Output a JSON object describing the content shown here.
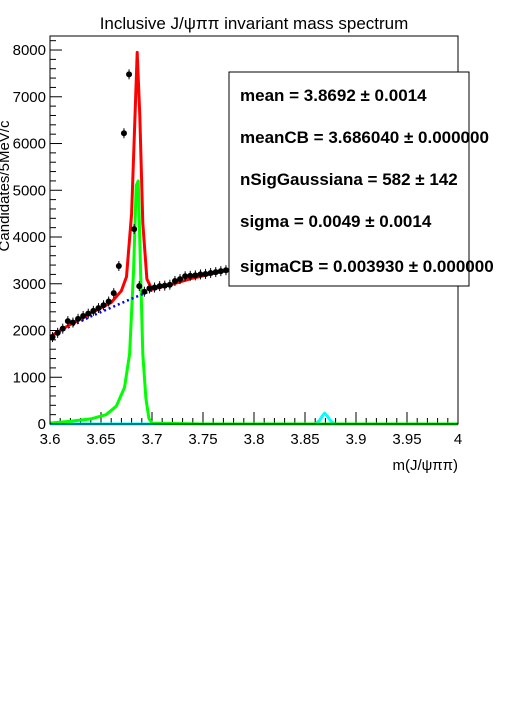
{
  "chart_data": {
    "type": "line",
    "title": "Inclusive J/ψππ invariant mass spectrum",
    "xlabel": "m(J/ψππ)",
    "ylabel": "Candidates/5MeV/c",
    "xlim": [
      3.6,
      4.0
    ],
    "ylim": [
      0,
      8300
    ],
    "x_ticks": [
      "3.6",
      "3.65",
      "3.7",
      "3.75",
      "3.8",
      "3.85",
      "3.9",
      "3.95",
      "4"
    ],
    "y_ticks": [
      "0",
      "1000",
      "2000",
      "3000",
      "4000",
      "5000",
      "6000",
      "7000",
      "8000"
    ],
    "series": [
      {
        "color": "#000000",
        "style": "points",
        "x": [
          3.6025,
          3.6075,
          3.6125,
          3.6175,
          3.6225,
          3.6275,
          3.6325,
          3.6375,
          3.6425,
          3.6475,
          3.6525,
          3.6575,
          3.6625,
          3.6675,
          3.6725,
          3.6775,
          3.6825,
          3.6875,
          3.6925,
          3.6975,
          3.7025,
          3.7075,
          3.7125,
          3.7175,
          3.7225,
          3.7275,
          3.7325,
          3.7375,
          3.7425,
          3.7475,
          3.7525,
          3.7575,
          3.7625,
          3.7675,
          3.7725
        ],
        "y": [
          1860,
          1950,
          2040,
          2200,
          2170,
          2250,
          2310,
          2360,
          2420,
          2480,
          2540,
          2620,
          2800,
          3380,
          6220,
          7480,
          4170,
          2950,
          2830,
          2900,
          2920,
          2950,
          2960,
          2980,
          3060,
          3100,
          3160,
          3170,
          3180,
          3200,
          3210,
          3230,
          3250,
          3270,
          3290
        ]
      },
      {
        "color": "#ff0000",
        "style": "line",
        "x": [
          3.6,
          3.62,
          3.64,
          3.66,
          3.67,
          3.675,
          3.68,
          3.683,
          3.6855,
          3.688,
          3.691,
          3.695,
          3.7,
          3.72,
          3.74,
          3.76,
          3.775
        ],
        "y": [
          1870,
          2130,
          2370,
          2600,
          2850,
          3150,
          4500,
          6400,
          7950,
          6600,
          4300,
          3100,
          2880,
          2990,
          3120,
          3220,
          3290
        ]
      },
      {
        "color": "#0000ff",
        "style": "dotted",
        "x": [
          3.6,
          3.62,
          3.64,
          3.66,
          3.68,
          3.7,
          3.72
        ],
        "y": [
          1870,
          2090,
          2300,
          2490,
          2680,
          2860,
          3000
        ]
      },
      {
        "color": "#00ff00",
        "style": "line",
        "x": [
          3.6,
          3.62,
          3.64,
          3.655,
          3.665,
          3.673,
          3.678,
          3.682,
          3.6845,
          3.6865,
          3.6885,
          3.691,
          3.694,
          3.697,
          3.7,
          3.75,
          4.0
        ],
        "y": [
          20,
          60,
          110,
          200,
          380,
          780,
          1500,
          3300,
          5100,
          5200,
          3500,
          1500,
          550,
          120,
          20,
          0,
          0
        ]
      },
      {
        "color": "#00ffff",
        "style": "line",
        "x": [
          3.6,
          3.86,
          3.864,
          3.867,
          3.8692,
          3.872,
          3.875,
          3.879,
          4.0
        ],
        "y": [
          0,
          0,
          70,
          170,
          230,
          170,
          70,
          0,
          0
        ]
      }
    ],
    "legend_position": "top-right",
    "grid": false
  },
  "stats": [
    "mean =  3.8692 ± 0.0014",
    "meanCB =  3.686040 ± 0.000000",
    "nSigGaussiana =  582  ± 142",
    "sigma =  0.0049 ± 0.0014",
    "sigmaCB =  0.003930 ± 0.000000"
  ]
}
